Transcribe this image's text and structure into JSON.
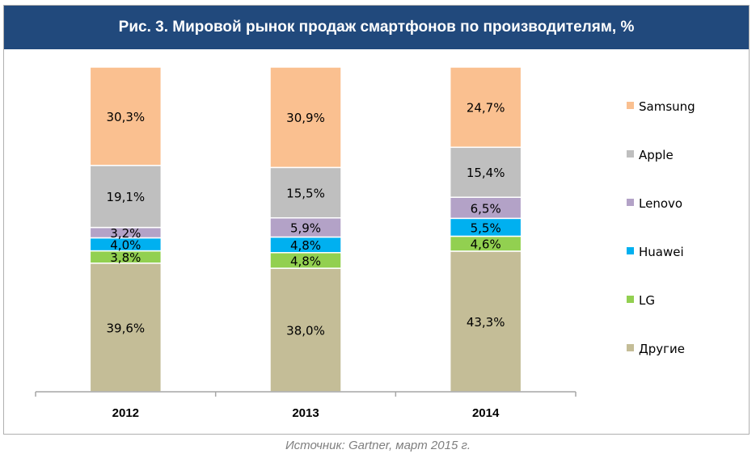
{
  "header": {
    "title": "Рис. 3. Мировой рынок продаж смартфонов по производителям, %"
  },
  "footer": {
    "source": "Источник: Gartner, март 2015 г."
  },
  "chart_data": {
    "type": "bar",
    "stacked": true,
    "title": "Рис. 3. Мировой рынок продаж смартфонов по производителям, %",
    "xlabel": "",
    "ylabel": "",
    "ylim": [
      0,
      100
    ],
    "grid": false,
    "legend_position": "right",
    "categories": [
      "2012",
      "2013",
      "2014"
    ],
    "series": [
      {
        "name": "Другие",
        "color": "#c4bd97",
        "values": [
          39.6,
          38.0,
          43.3
        ],
        "labels": [
          "39,6%",
          "38,0%",
          "43,3%"
        ]
      },
      {
        "name": "LG",
        "color": "#92d050",
        "values": [
          3.8,
          4.8,
          4.6
        ],
        "labels": [
          "3,8%",
          "4,8%",
          "4,6%"
        ]
      },
      {
        "name": "Huawei",
        "color": "#00b0f0",
        "values": [
          4.0,
          4.8,
          5.5
        ],
        "labels": [
          "4,0%",
          "4,8%",
          "5,5%"
        ]
      },
      {
        "name": "Lenovo",
        "color": "#b3a2c7",
        "values": [
          3.2,
          5.9,
          6.5
        ],
        "labels": [
          "3,2%",
          "5,9%",
          "6,5%"
        ]
      },
      {
        "name": "Apple",
        "color": "#bfbfbf",
        "values": [
          19.1,
          15.5,
          15.4
        ],
        "labels": [
          "19,1%",
          "15,5%",
          "15,4%"
        ]
      },
      {
        "name": "Samsung",
        "color": "#fac090",
        "values": [
          30.3,
          30.9,
          24.7
        ],
        "labels": [
          "30,3%",
          "30,9%",
          "24,7%"
        ]
      }
    ],
    "legend_order": [
      "Samsung",
      "Apple",
      "Lenovo",
      "Huawei",
      "LG",
      "Другие"
    ]
  }
}
